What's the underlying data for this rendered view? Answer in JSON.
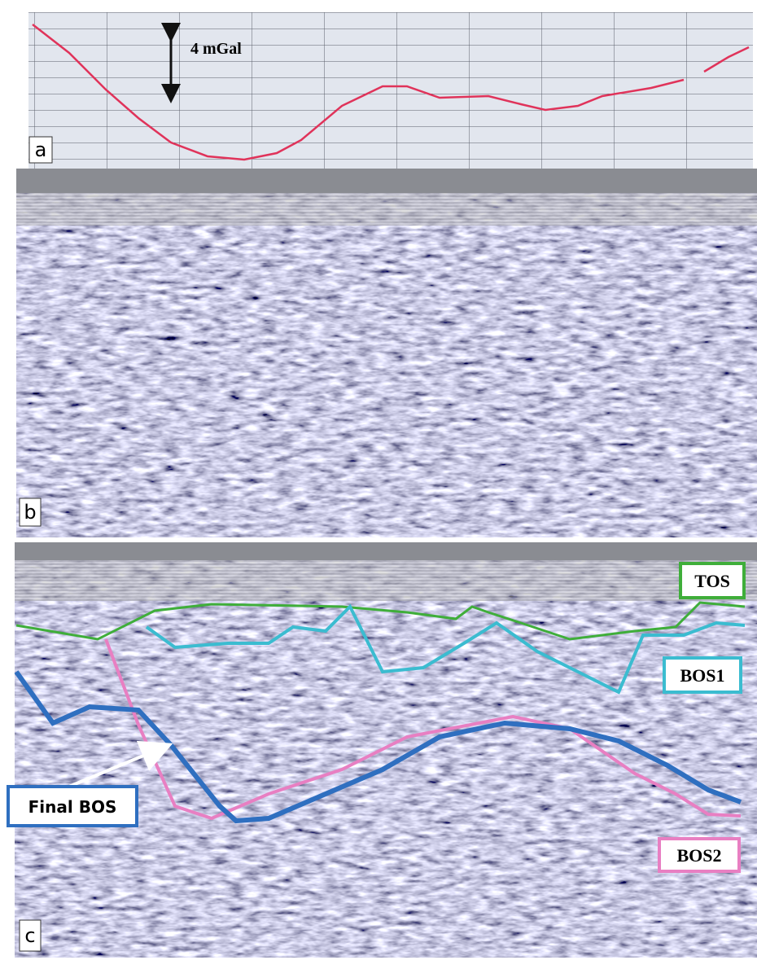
{
  "panels": [
    {
      "label": "a",
      "annotation": "4 mGal"
    },
    {
      "label": "b"
    },
    {
      "label": "c",
      "legend": [
        "TOS",
        "BOS1",
        "Final BOS",
        "BOS2"
      ]
    }
  ]
}
